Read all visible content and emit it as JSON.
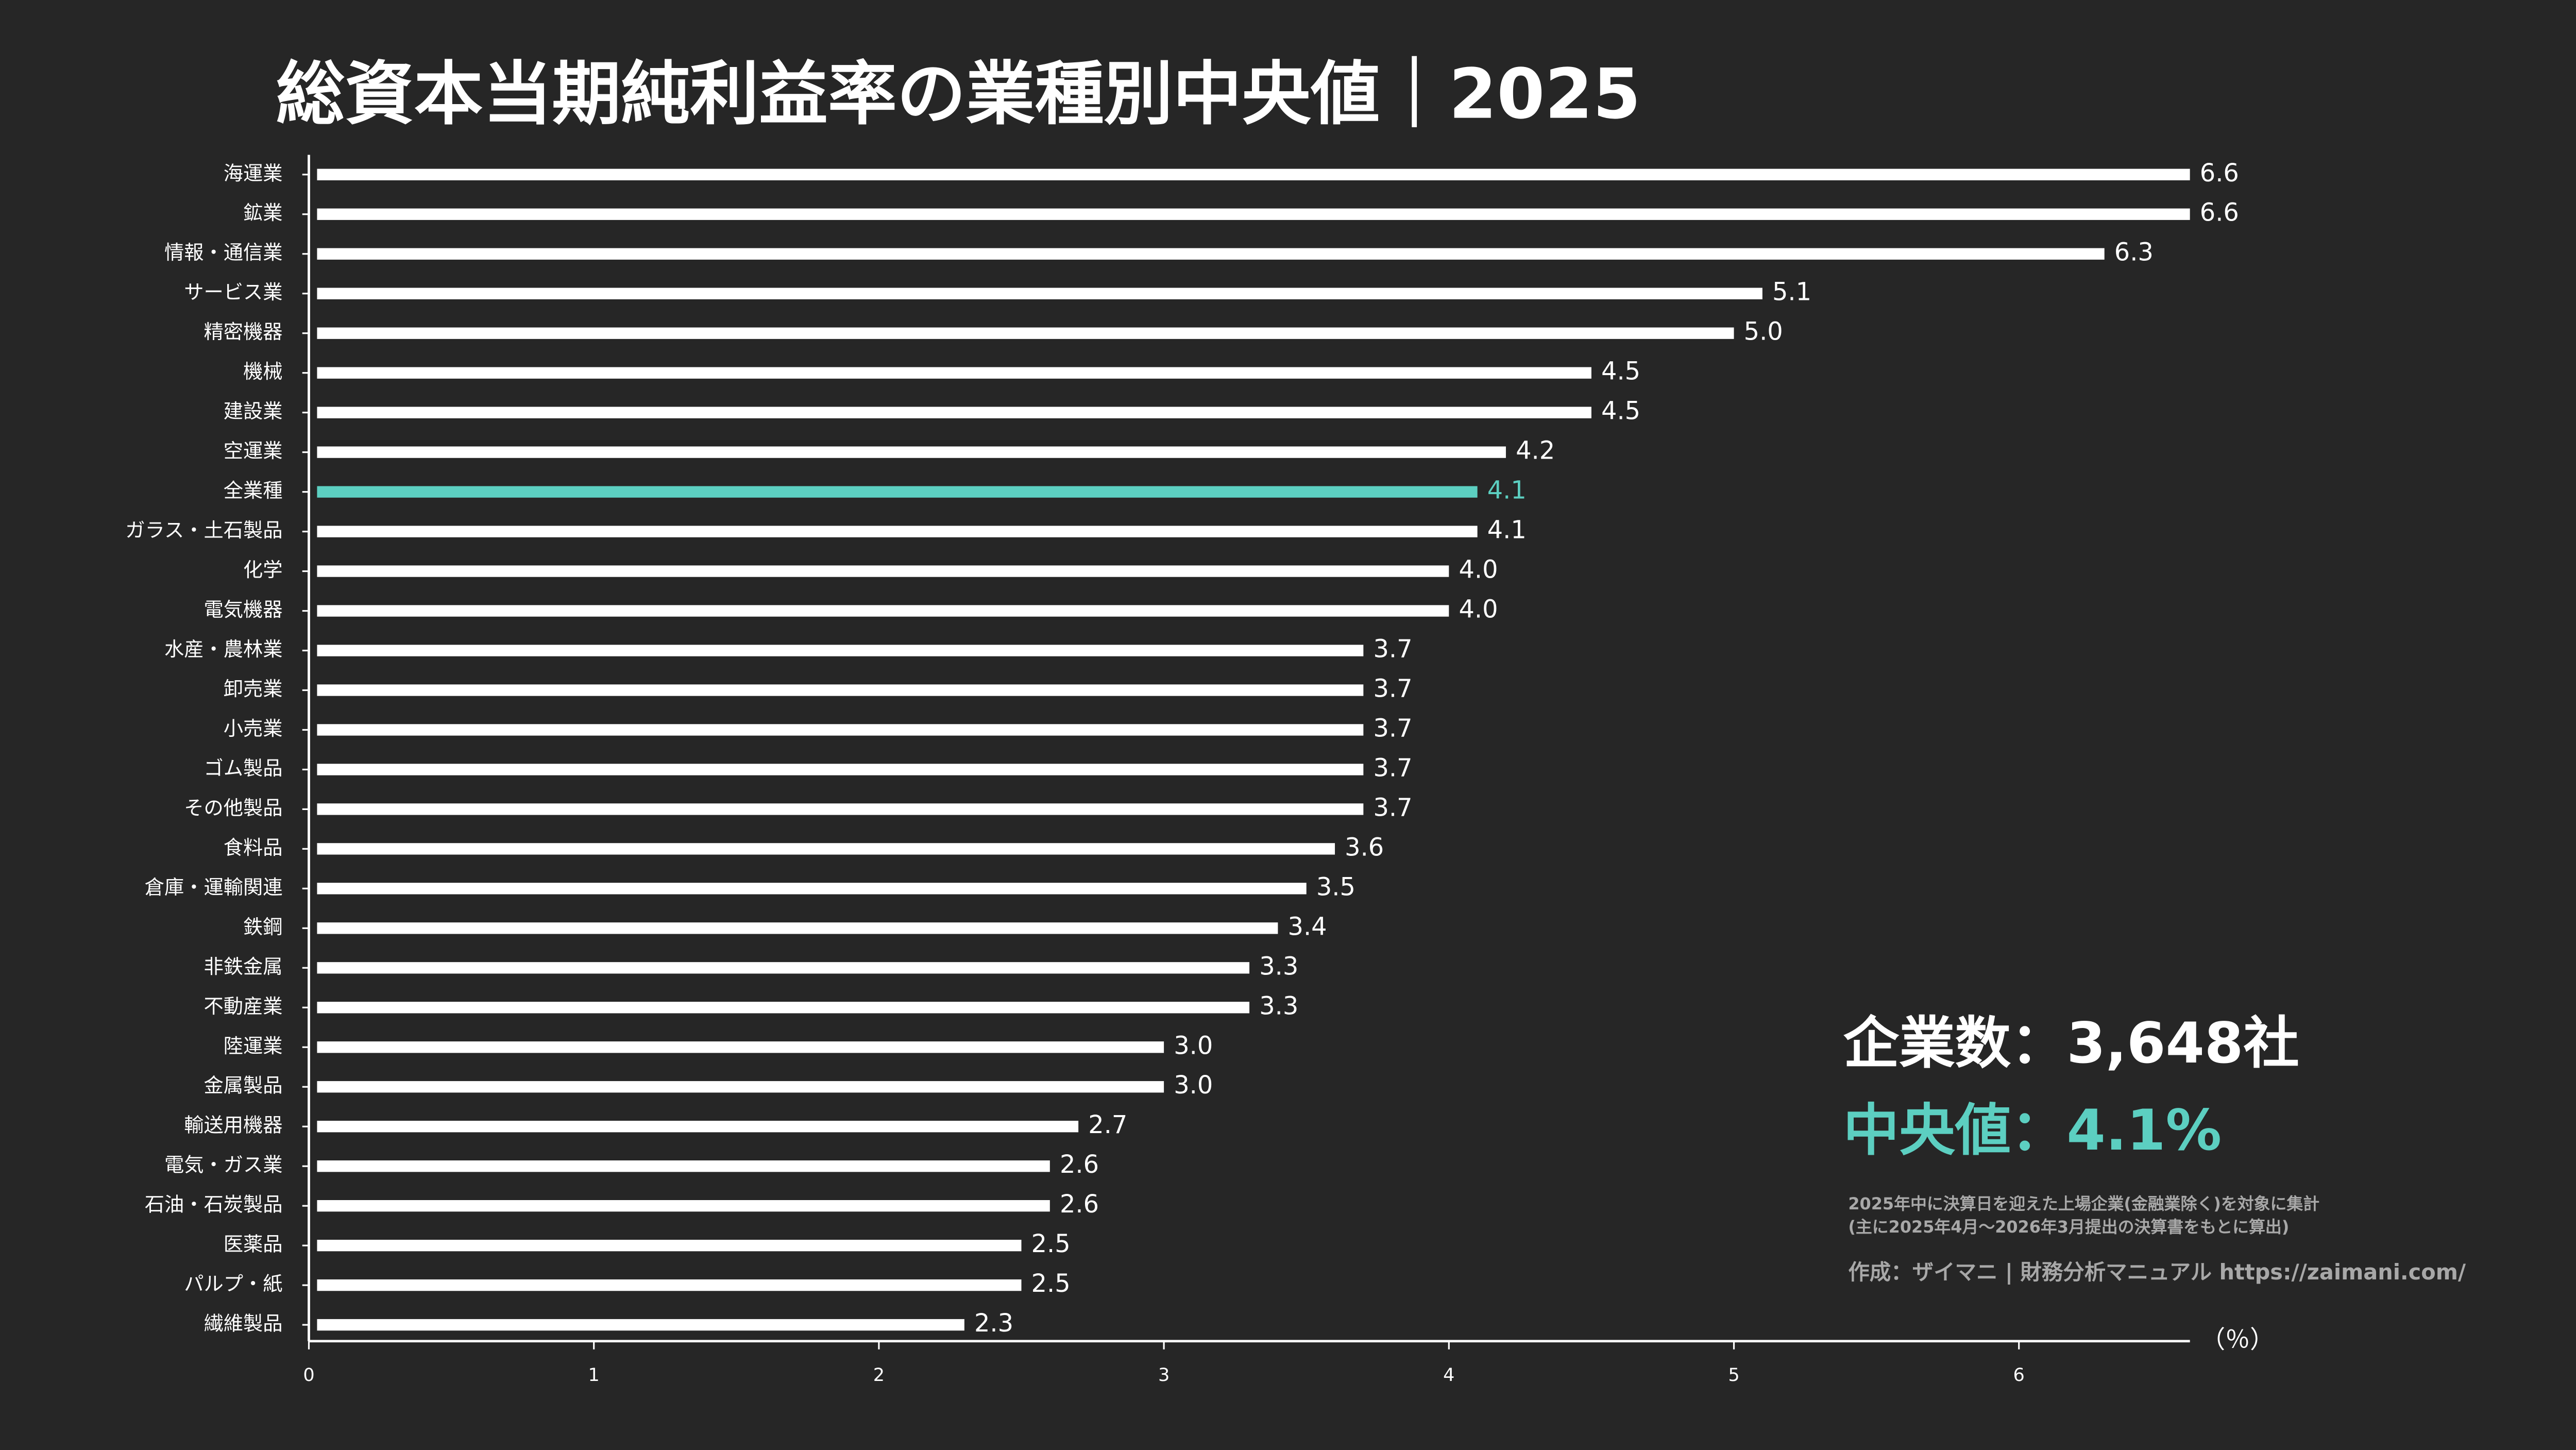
{
  "chart_data": {
    "type": "barh",
    "title": "総資本当期純利益率の業種別中央値｜2025",
    "categories": [
      "海運業",
      "鉱業",
      "情報・通信業",
      "サービス業",
      "精密機器",
      "機械",
      "建設業",
      "空運業",
      "全業種",
      "ガラス・土石製品",
      "化学",
      "電気機器",
      "水産・農林業",
      "卸売業",
      "小売業",
      "ゴム製品",
      "その他製品",
      "食料品",
      "倉庫・運輸関連",
      "鉄鋼",
      "非鉄金属",
      "不動産業",
      "陸運業",
      "金属製品",
      "輸送用機器",
      "電気・ガス業",
      "石油・石炭製品",
      "医薬品",
      "パルプ・紙",
      "繊維製品"
    ],
    "values": [
      6.6,
      6.6,
      6.3,
      5.1,
      5.0,
      4.5,
      4.5,
      4.2,
      4.1,
      4.1,
      4.0,
      4.0,
      3.7,
      3.7,
      3.7,
      3.7,
      3.7,
      3.6,
      3.5,
      3.4,
      3.3,
      3.3,
      3.0,
      3.0,
      2.7,
      2.6,
      2.6,
      2.5,
      2.5,
      2.3
    ],
    "value_labels": [
      "6.6",
      "6.6",
      "6.3",
      "5.1",
      "5.0",
      "4.5",
      "4.5",
      "4.2",
      "4.1",
      "4.1",
      "4.0",
      "4.0",
      "3.7",
      "3.7",
      "3.7",
      "3.7",
      "3.7",
      "3.6",
      "3.5",
      "3.4",
      "3.3",
      "3.3",
      "3.0",
      "3.0",
      "2.7",
      "2.6",
      "2.6",
      "2.5",
      "2.5",
      "2.3"
    ],
    "colors": [
      "#ffffff",
      "#ffffff",
      "#ffffff",
      "#ffffff",
      "#ffffff",
      "#ffffff",
      "#ffffff",
      "#ffffff",
      "#5ccfc1",
      "#ffffff",
      "#ffffff",
      "#ffffff",
      "#ffffff",
      "#ffffff",
      "#ffffff",
      "#ffffff",
      "#ffffff",
      "#ffffff",
      "#ffffff",
      "#ffffff",
      "#ffffff",
      "#ffffff",
      "#ffffff",
      "#ffffff",
      "#ffffff",
      "#ffffff",
      "#ffffff",
      "#ffffff",
      "#ffffff",
      "#ffffff"
    ],
    "xlim": [
      0,
      6.6
    ],
    "xticks": [
      0,
      1,
      2,
      3,
      4,
      5,
      6
    ],
    "x_label": "（％）",
    "annotations": [
      "企業数：3,648社",
      "中央値：4.1%",
      "2025年中に決算日を迎えた上場企業(金融業除く)を対象に集計",
      "(主に2025年4月～2026年3月提出の決算書をもとに算出)",
      "作成：ザイマニ | 財務分析マニュアル https://zaimani.com/"
    ]
  }
}
